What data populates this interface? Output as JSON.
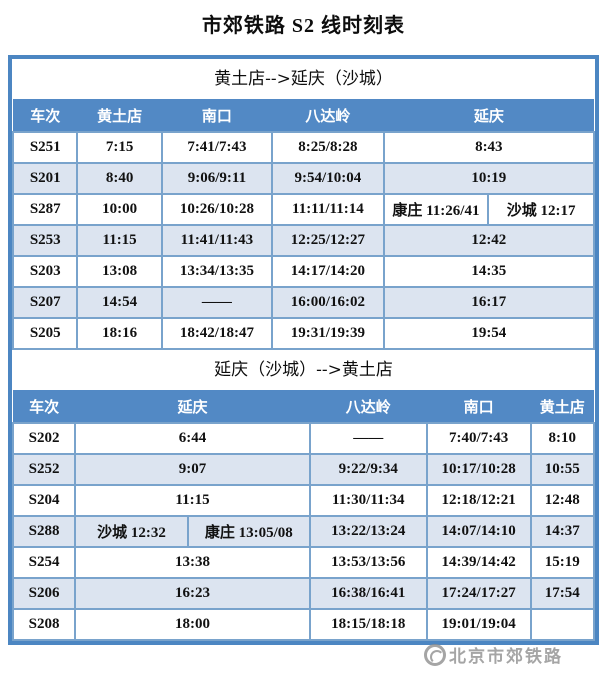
{
  "page": {
    "title": "市郊铁路 S2 线时刻表"
  },
  "colors": {
    "header_blue": "#5289c5",
    "row_alt_blue": "#dce4f0",
    "grid_line": "#79a3cc",
    "outer_border": "#4c86c2",
    "header_text": "#ffffff",
    "cell_text": "#111111",
    "watermark_gray": "#8f8f8f"
  },
  "watermark": {
    "logo": "ring-logo",
    "text": "北京市郊铁路"
  },
  "sections": [
    {
      "direction": "黄土店-->延庆（沙城）",
      "columns": [
        {
          "label": "车次",
          "span": 1
        },
        {
          "label": "黄土店",
          "span": 1
        },
        {
          "label": "南口",
          "span": 1
        },
        {
          "label": "八达岭",
          "span": 1
        },
        {
          "label": "延庆",
          "span": 2
        }
      ],
      "col_widths": [
        "11.1%",
        "14.5%",
        "19.0%",
        "19.2%",
        "18.0%",
        "18.2%"
      ],
      "rows": [
        {
          "cells": [
            {
              "t": "S251"
            },
            {
              "t": "7:15"
            },
            {
              "t": "7:41/7:43"
            },
            {
              "t": "8:25/8:28"
            },
            {
              "t": "8:43",
              "span": 2
            }
          ]
        },
        {
          "cells": [
            {
              "t": "S201"
            },
            {
              "t": "8:40"
            },
            {
              "t": "9:06/9:11"
            },
            {
              "t": "9:54/10:04"
            },
            {
              "t": "10:19",
              "span": 2
            }
          ]
        },
        {
          "cells": [
            {
              "t": "S287"
            },
            {
              "t": "10:00"
            },
            {
              "t": "10:26/10:28"
            },
            {
              "t": "11:11/11:14"
            },
            {
              "t": "康庄 11:26/41"
            },
            {
              "t": "沙城 12:17"
            }
          ]
        },
        {
          "cells": [
            {
              "t": "S253"
            },
            {
              "t": "11:15"
            },
            {
              "t": "11:41/11:43"
            },
            {
              "t": "12:25/12:27"
            },
            {
              "t": "12:42",
              "span": 2
            }
          ]
        },
        {
          "cells": [
            {
              "t": "S203"
            },
            {
              "t": "13:08"
            },
            {
              "t": "13:34/13:35"
            },
            {
              "t": "14:17/14:20"
            },
            {
              "t": "14:35",
              "span": 2
            }
          ]
        },
        {
          "cells": [
            {
              "t": "S207"
            },
            {
              "t": "14:54"
            },
            {
              "t": "——"
            },
            {
              "t": "16:00/16:02"
            },
            {
              "t": "16:17",
              "span": 2
            }
          ]
        },
        {
          "cells": [
            {
              "t": "S205"
            },
            {
              "t": "18:16"
            },
            {
              "t": "18:42/18:47"
            },
            {
              "t": "19:31/19:39"
            },
            {
              "t": "19:54",
              "span": 2
            }
          ]
        }
      ]
    },
    {
      "direction": "延庆（沙城）-->黄土店",
      "columns": [
        {
          "label": "车次",
          "span": 1
        },
        {
          "label": "延庆",
          "span": 2
        },
        {
          "label": "八达岭",
          "span": 1
        },
        {
          "label": "南口",
          "span": 1
        },
        {
          "label": "黄土店",
          "span": 1
        }
      ],
      "col_widths": [
        "10.7%",
        "19.4%",
        "21.0%",
        "20.1%",
        "17.9%",
        "10.9%"
      ],
      "rows": [
        {
          "cells": [
            {
              "t": "S202"
            },
            {
              "t": "6:44",
              "span": 2
            },
            {
              "t": "——"
            },
            {
              "t": "7:40/7:43"
            },
            {
              "t": "8:10"
            }
          ]
        },
        {
          "cells": [
            {
              "t": "S252"
            },
            {
              "t": "9:07",
              "span": 2
            },
            {
              "t": "9:22/9:34"
            },
            {
              "t": "10:17/10:28"
            },
            {
              "t": "10:55"
            }
          ]
        },
        {
          "cells": [
            {
              "t": "S204"
            },
            {
              "t": "11:15",
              "span": 2
            },
            {
              "t": "11:30/11:34"
            },
            {
              "t": "12:18/12:21"
            },
            {
              "t": "12:48"
            }
          ]
        },
        {
          "cells": [
            {
              "t": "S288"
            },
            {
              "t": "沙城 12:32"
            },
            {
              "t": "康庄 13:05/08"
            },
            {
              "t": "13:22/13:24"
            },
            {
              "t": "14:07/14:10"
            },
            {
              "t": "14:37"
            }
          ]
        },
        {
          "cells": [
            {
              "t": "S254"
            },
            {
              "t": "13:38",
              "span": 2
            },
            {
              "t": "13:53/13:56"
            },
            {
              "t": "14:39/14:42"
            },
            {
              "t": "15:19"
            }
          ]
        },
        {
          "cells": [
            {
              "t": "S206"
            },
            {
              "t": "16:23",
              "span": 2
            },
            {
              "t": "16:38/16:41"
            },
            {
              "t": "17:24/17:27"
            },
            {
              "t": "17:54"
            }
          ]
        },
        {
          "cells": [
            {
              "t": "S208"
            },
            {
              "t": "18:00",
              "span": 2
            },
            {
              "t": "18:15/18:18"
            },
            {
              "t": "19:01/19:04"
            },
            {
              "t": ""
            }
          ]
        }
      ]
    }
  ]
}
